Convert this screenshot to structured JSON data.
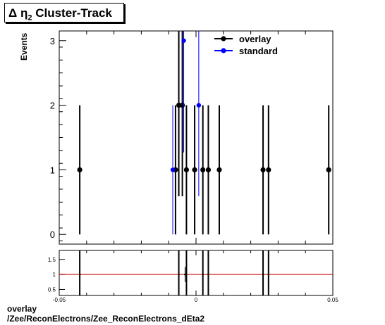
{
  "title": {
    "delta": "Δ",
    "eta": "η",
    "subscript": "2",
    "rest": "Cluster-Track"
  },
  "footer": {
    "line1": "overlay",
    "line2": "/Zee/ReconElectrons/Zee_ReconElectrons_dEta2"
  },
  "chart_data": [
    {
      "type": "scatter",
      "ylabel": "Events",
      "xlim": [
        -0.05,
        0.05
      ],
      "ylim": [
        -0.15,
        3.15
      ],
      "yticks": [
        0,
        1,
        2,
        3
      ],
      "legend_position": "top-right",
      "series": [
        {
          "name": "overlay",
          "color": "#000000",
          "points": [
            {
              "x": -0.0425,
              "y": 1,
              "err": 1
            },
            {
              "x": -0.0075,
              "y": 1,
              "err": 1
            },
            {
              "x": -0.0063,
              "y": 2,
              "err": 1.41
            },
            {
              "x": -0.005,
              "y": 2,
              "err": 1.41
            },
            {
              "x": -0.0035,
              "y": 1,
              "err": 1
            },
            {
              "x": -0.0005,
              "y": 1,
              "err": 1
            },
            {
              "x": 0.0025,
              "y": 1,
              "err": 1
            },
            {
              "x": 0.0045,
              "y": 1,
              "err": 1
            },
            {
              "x": 0.0085,
              "y": 1,
              "err": 1
            },
            {
              "x": 0.0245,
              "y": 1,
              "err": 1
            },
            {
              "x": 0.0265,
              "y": 1,
              "err": 1
            },
            {
              "x": 0.0485,
              "y": 1,
              "err": 1
            }
          ]
        },
        {
          "name": "standard",
          "color": "#0000ff",
          "points": [
            {
              "x": -0.0085,
              "y": 1,
              "err": 1
            },
            {
              "x": -0.0045,
              "y": 3,
              "err": 1.73
            },
            {
              "x": 0.001,
              "y": 2,
              "err": 1.41
            }
          ]
        }
      ]
    },
    {
      "type": "scatter",
      "xlim": [
        -0.05,
        0.05
      ],
      "ylim": [
        0.3,
        1.8
      ],
      "yticks": [
        0.5,
        1,
        1.5
      ],
      "xticks": [
        -0.05,
        0,
        0.05
      ],
      "reference_line": 1,
      "reference_color": "#cc0000",
      "xlabel": "",
      "points": [
        {
          "x": -0.0425,
          "y": 1,
          "err": 1.4
        },
        {
          "x": -0.0063,
          "y": 1,
          "err": 1.4
        },
        {
          "x": -0.004,
          "y": 1,
          "err": 0.25
        },
        {
          "x": -0.0035,
          "y": 1,
          "err": 1.4
        },
        {
          "x": 0.0025,
          "y": 1,
          "err": 1.4
        },
        {
          "x": 0.0045,
          "y": 1,
          "err": 1.4
        },
        {
          "x": 0.0245,
          "y": 1,
          "err": 1.4
        },
        {
          "x": 0.0265,
          "y": 1,
          "err": 1.4
        }
      ]
    }
  ]
}
